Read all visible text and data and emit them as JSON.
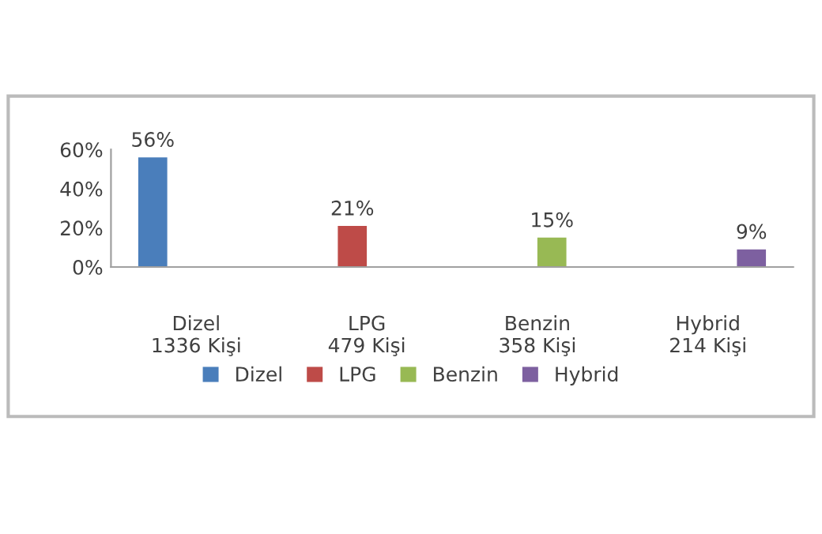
{
  "chart_data": {
    "type": "bar",
    "categories": [
      "Dizel\n1336 Kişi",
      "LPG\n479 Kişi",
      "Benzin\n358 Kişi",
      "Hybrid\n214 Kişi"
    ],
    "series": [
      {
        "name": "Dizel",
        "color": "#4a7ebb",
        "values": [
          56,
          null,
          null,
          null
        ],
        "value_labels": [
          "56%",
          null,
          null,
          null
        ]
      },
      {
        "name": "LPG",
        "color": "#be4b48",
        "values": [
          null,
          21,
          null,
          null
        ],
        "value_labels": [
          null,
          "21%",
          null,
          null
        ]
      },
      {
        "name": "Benzin",
        "color": "#98b954",
        "values": [
          null,
          null,
          15,
          null
        ],
        "value_labels": [
          null,
          null,
          "15%",
          null
        ]
      },
      {
        "name": "Hybrid",
        "color": "#7d60a0",
        "values": [
          null,
          null,
          null,
          9
        ],
        "value_labels": [
          null,
          null,
          null,
          "9%"
        ]
      }
    ],
    "ylim": [
      0,
      60
    ],
    "yticks": [
      {
        "value": 0,
        "label": "0%"
      },
      {
        "value": 20,
        "label": "20%"
      },
      {
        "value": 40,
        "label": "40%"
      },
      {
        "value": 60,
        "label": "60%"
      }
    ],
    "grid": false,
    "legend": "bottom"
  }
}
